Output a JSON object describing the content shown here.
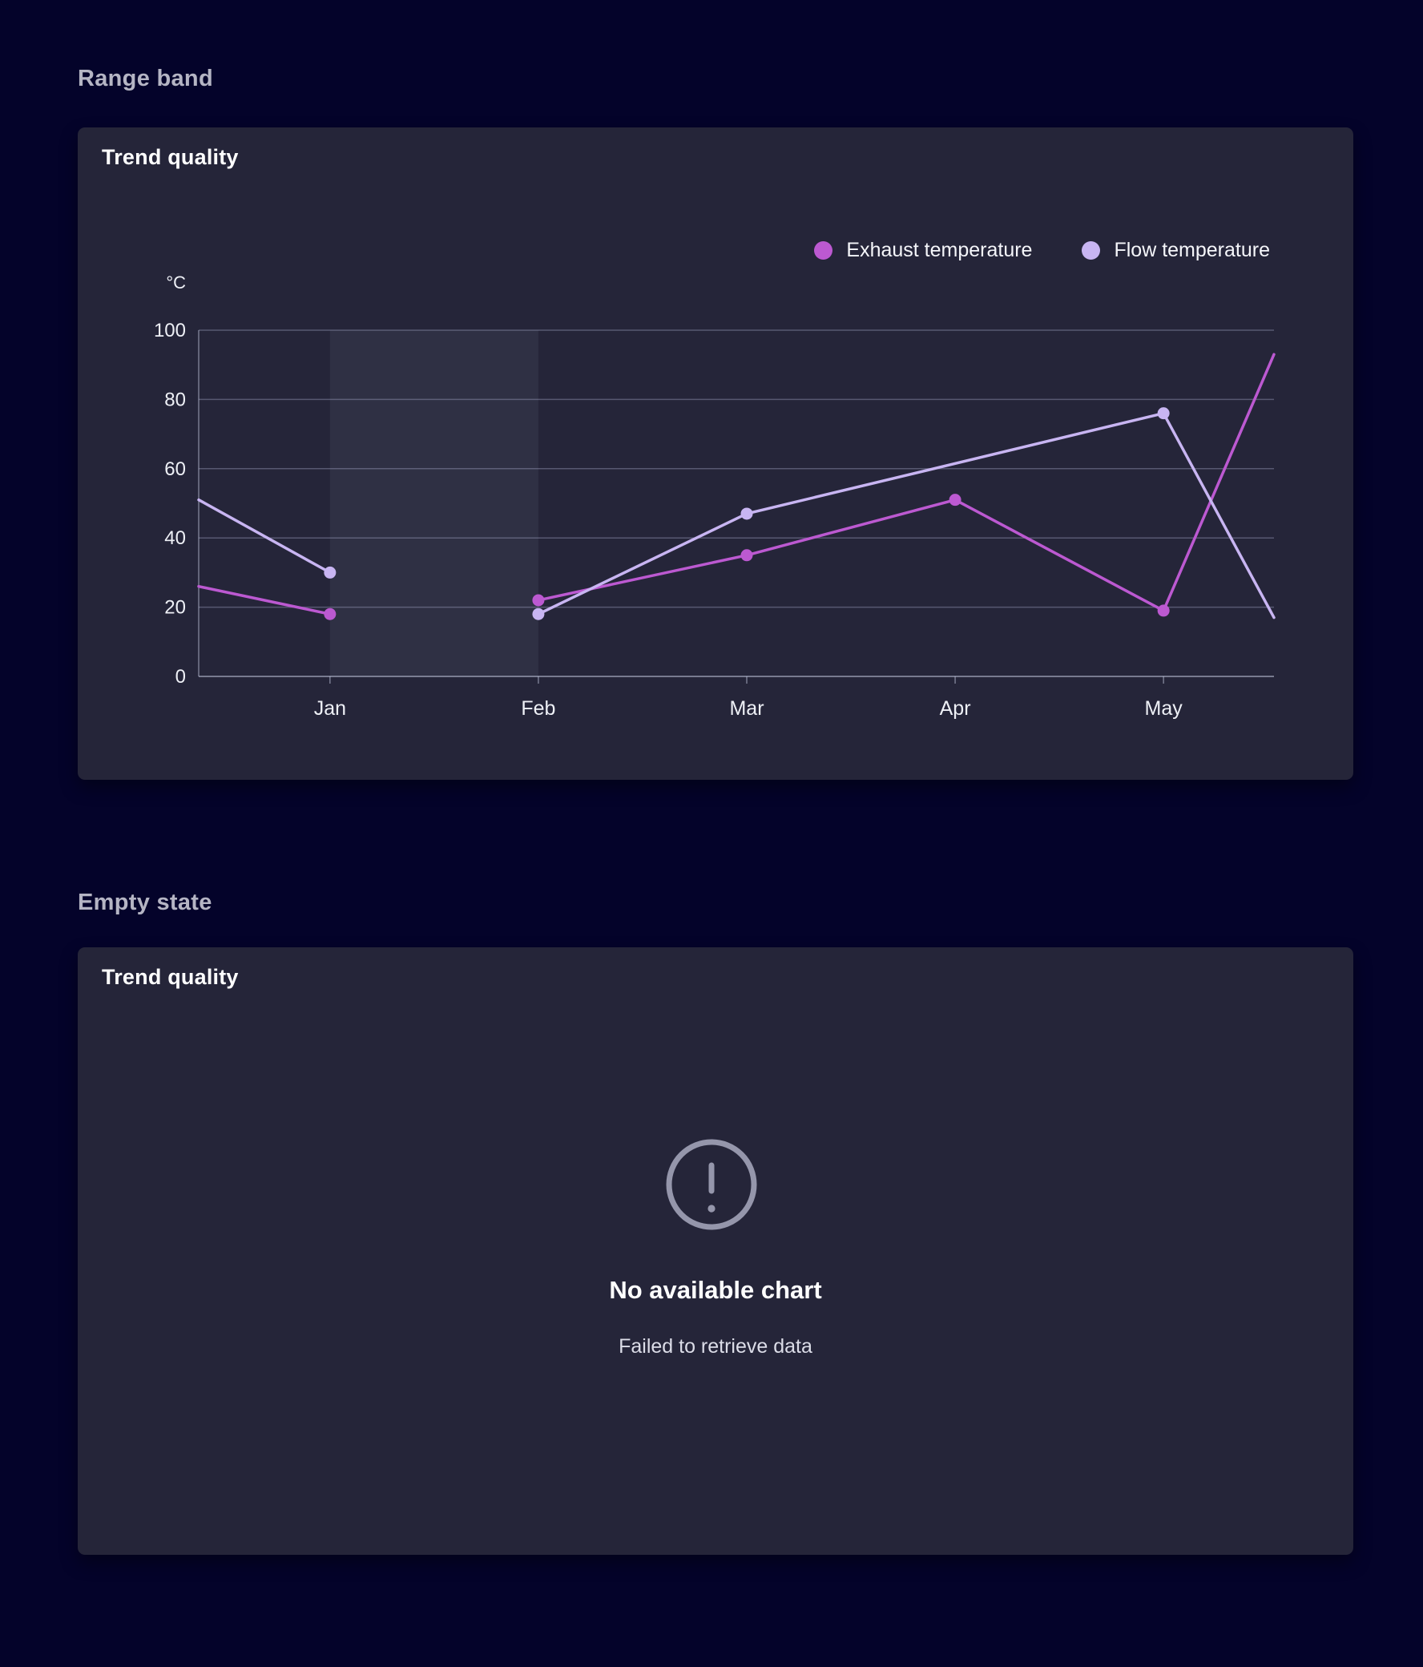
{
  "sections": {
    "range_band": {
      "heading": "Range band",
      "card_title": "Trend quality"
    },
    "empty_state": {
      "heading": "Empty state",
      "card_title": "Trend quality",
      "icon": "alert-circle-icon",
      "title": "No available chart",
      "subtitle": "Failed to retrieve data"
    }
  },
  "colors": {
    "page_background": "#04032a",
    "card_background": "#252539",
    "heading_text": "#b5b5c4",
    "title_text": "#ffffff",
    "subtitle_text": "#dcdde8",
    "empty_icon": "#9596ab"
  },
  "chart_data": {
    "type": "line",
    "title": "Trend quality",
    "unit": "°C",
    "legend_position": "top-right",
    "grid": true,
    "categories": [
      "Jan",
      "Feb",
      "Mar",
      "Apr",
      "May"
    ],
    "category_x": [
      1,
      2,
      3,
      4,
      5
    ],
    "x_window": [
      0.37,
      5.53
    ],
    "y_axis": {
      "min": 0,
      "max": 100,
      "ticks": [
        0,
        20,
        40,
        60,
        80,
        100
      ]
    },
    "range_band": {
      "from": "Jan",
      "to": "Feb",
      "note": "data gap band between Jan and Feb"
    },
    "series": [
      {
        "name": "Exhaust temperature",
        "color": "#bc59d1",
        "segments": [
          [
            [
              0.37,
              26
            ],
            [
              1,
              18
            ]
          ],
          [
            [
              2,
              22
            ],
            [
              3,
              35
            ],
            [
              4,
              51
            ],
            [
              5,
              19
            ],
            [
              5.53,
              93
            ]
          ]
        ],
        "markers": [
          [
            1,
            18
          ],
          [
            2,
            22
          ],
          [
            3,
            35
          ],
          [
            4,
            51
          ],
          [
            5,
            19
          ]
        ]
      },
      {
        "name": "Flow temperature",
        "color": "#c8b5f2",
        "segments": [
          [
            [
              0.37,
              51
            ],
            [
              1,
              30
            ]
          ],
          [
            [
              2,
              18
            ],
            [
              3,
              47
            ],
            [
              5,
              76
            ],
            [
              5.53,
              17
            ]
          ]
        ],
        "markers": [
          [
            1,
            30
          ],
          [
            2,
            18
          ],
          [
            3,
            47
          ],
          [
            5,
            76
          ]
        ]
      }
    ],
    "style": {
      "band_fill": "rgba(226,230,255,0.06)",
      "grid_line": "rgba(170,174,204,0.38)",
      "axis_line": "rgba(190,194,216,0.55)",
      "axis_text": "#eef0f6",
      "line_width": 3.5,
      "marker_radius": 7.5
    }
  }
}
